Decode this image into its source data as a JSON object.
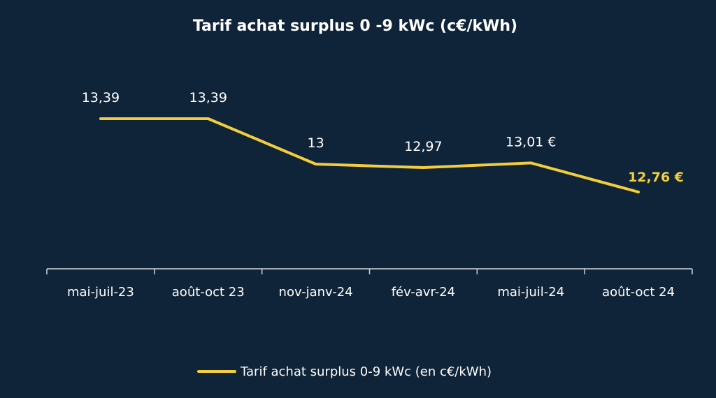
{
  "chart_data": {
    "type": "line",
    "title": "Tarif achat surplus 0 -9 kWc (c€/kWh)",
    "categories": [
      "mai-juil-23",
      "août-oct 23",
      "nov-janv-24",
      "fév-avr-24",
      "mai-juil-24",
      "août-oct 24"
    ],
    "series": [
      {
        "name": "Tarif achat surplus 0-9 kWc (en c€/kWh)",
        "values": [
          13.39,
          13.39,
          13.0,
          12.97,
          13.01,
          12.76
        ],
        "labels": [
          "13,39",
          "13,39",
          "13",
          "12,97",
          "13,01 €",
          "12,76 €"
        ],
        "color": "#f2cd3c"
      }
    ],
    "highlight_index": 5,
    "highlight_color": "#f2cd3c",
    "label_color": "#ffffff",
    "background_color": "#0f2438",
    "axis_color": "#d0d4d9",
    "ylim": [
      12.1,
      13.75
    ],
    "grid": false,
    "legend_position": "bottom-center",
    "xlabel": "",
    "ylabel": ""
  }
}
